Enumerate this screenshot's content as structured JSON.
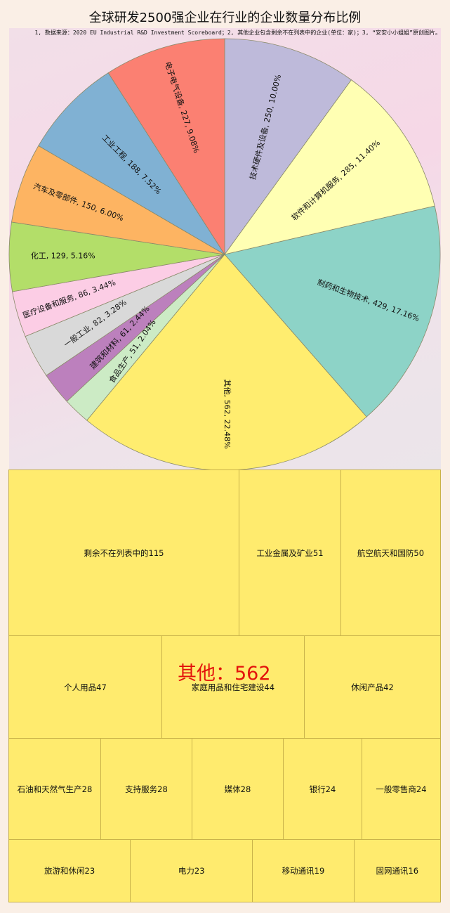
{
  "title": "全球研发2500强企业在行业的企业数量分布比例",
  "note": "1, 数据来源：2020 EU Industrial R&D Investment Scoreboard；2, 其他企业包含剩余不在列表中的企业(单位：家)；3, “安安小小姐姐”原创图片。",
  "overlay_label": "其他：562",
  "chart_data": [
    {
      "type": "pie",
      "title": "全球研发2500强企业在行业的企业数量分布比例",
      "unit": "家",
      "total": 2500,
      "start_angle": "12 o'clock, clockwise",
      "slices": [
        {
          "label": "技术硬件及设备",
          "value": 250,
          "pct": "10.00%",
          "color": "#bebada",
          "text": "技术硬件及设备, 250, 10.00%"
        },
        {
          "label": "软件和计算机服务",
          "value": 285,
          "pct": "11.40%",
          "color": "#ffffb3",
          "text": "软件和计算机服务, 285, 11.40%"
        },
        {
          "label": "制药和生物技术",
          "value": 429,
          "pct": "17.16%",
          "color": "#8dd3c7",
          "text": "制药和生物技术, 429, 17.16%"
        },
        {
          "label": "其他",
          "value": 562,
          "pct": "22.48%",
          "color": "#ffed6f",
          "text": "其他, 562, 22.48%"
        },
        {
          "label": "食品生产",
          "value": 51,
          "pct": "2.04%",
          "color": "#ccebc5",
          "text": "食品生产, 51, 2.04%"
        },
        {
          "label": "建筑和材料",
          "value": 61,
          "pct": "2.44%",
          "color": "#bc80bd",
          "text": "建筑和材料, 61, 2.44%"
        },
        {
          "label": "一般工业",
          "value": 82,
          "pct": "3.28%",
          "color": "#d9d9d9",
          "text": "一般工业, 82, 3.28%"
        },
        {
          "label": "医疗设备和服务",
          "value": 86,
          "pct": "3.44%",
          "color": "#fccde5",
          "text": "医疗设备和服务, 86, 3.44%"
        },
        {
          "label": "化工",
          "value": 129,
          "pct": "5.16%",
          "color": "#b3de69",
          "text": "化工, 129, 5.16%"
        },
        {
          "label": "汽车及零部件",
          "value": 150,
          "pct": "6.00%",
          "color": "#fdb462",
          "text": "汽车及零部件, 150, 6.00%"
        },
        {
          "label": "工业工程",
          "value": 188,
          "pct": "7.52%",
          "color": "#80b1d3",
          "text": "工业工程, 188, 7.52%"
        },
        {
          "label": "电子电气设备",
          "value": 227,
          "pct": "9.08%",
          "color": "#fb8072",
          "text": "电子电气设备, 227, 9.08%"
        }
      ]
    },
    {
      "type": "treemap",
      "title": "其他：562",
      "color": "#ffeb6e",
      "rows": [
        [
          {
            "label": "剩余不在列表中的",
            "value": 115,
            "text": "剩余不在列表中的115"
          },
          {
            "label": "工业金属及矿业",
            "value": 51,
            "text": "工业金属及矿业51"
          },
          {
            "label": "航空航天和国防",
            "value": 50,
            "text": "航空航天和国防50"
          }
        ],
        [
          {
            "label": "个人用品",
            "value": 47,
            "text": "个人用品47"
          },
          {
            "label": "家庭用品和住宅建设",
            "value": 44,
            "text": "家庭用品和住宅建设44"
          },
          {
            "label": "休闲产品",
            "value": 42,
            "text": "休闲产品42"
          }
        ],
        [
          {
            "label": "石油和天然气生产",
            "value": 28,
            "text": "石油和天然气生产28"
          },
          {
            "label": "支持服务",
            "value": 28,
            "text": "支持服务28"
          },
          {
            "label": "媒体",
            "value": 28,
            "text": "媒体28"
          },
          {
            "label": "银行",
            "value": 24,
            "text": "银行24"
          },
          {
            "label": "一般零售商",
            "value": 24,
            "text": "一般零售商24"
          }
        ],
        [
          {
            "label": "旅游和休闲",
            "value": 23,
            "text": "旅游和休闲23"
          },
          {
            "label": "电力",
            "value": 23,
            "text": "电力23"
          },
          {
            "label": "移动通讯",
            "value": 19,
            "text": "移动通讯19"
          },
          {
            "label": "固网通讯",
            "value": 16,
            "text": "固网通讯16"
          }
        ]
      ]
    }
  ]
}
